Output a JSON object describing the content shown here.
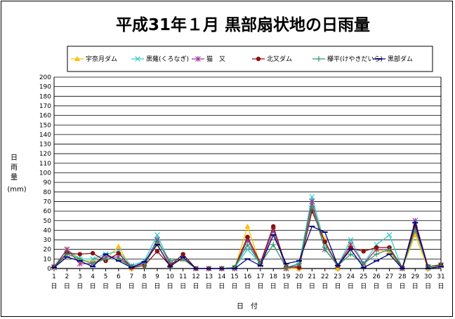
{
  "chart_data": {
    "type": "line",
    "title": "平成31年１月 黒部扇状地の日雨量",
    "ylabel_chars": [
      "日",
      "雨",
      "量"
    ],
    "yunit": "(mm)",
    "xlabel": "日　付",
    "ylim": [
      0,
      200
    ],
    "ytick_step": 10,
    "grid": true,
    "legend_position": "top",
    "x_day_suffix": "日",
    "x": [
      1,
      2,
      3,
      4,
      5,
      6,
      7,
      8,
      9,
      10,
      11,
      12,
      13,
      14,
      15,
      16,
      17,
      18,
      19,
      20,
      21,
      22,
      23,
      24,
      25,
      26,
      27,
      28,
      29,
      30,
      31
    ],
    "series": [
      {
        "name": "宇奈月ダム",
        "color": "#ffc000",
        "marker": "triangle",
        "values": [
          1,
          20,
          8,
          8,
          10,
          23,
          0,
          5,
          25,
          3,
          10,
          0,
          0,
          0,
          0,
          44,
          4,
          40,
          0,
          0,
          65,
          30,
          0,
          25,
          5,
          20,
          17,
          0,
          35,
          0,
          3
        ]
      },
      {
        "name": "黒薙(くろなぎ)",
        "color": "#33cccc",
        "marker": "x",
        "values": [
          2,
          20,
          10,
          10,
          15,
          18,
          3,
          8,
          35,
          5,
          10,
          0,
          0,
          0,
          1,
          20,
          5,
          40,
          0,
          5,
          75,
          25,
          3,
          30,
          5,
          25,
          35,
          0,
          45,
          1,
          4
        ]
      },
      {
        "name": "猫　又",
        "color": "#993399",
        "marker": "star",
        "values": [
          1,
          20,
          5,
          5,
          12,
          12,
          2,
          5,
          30,
          5,
          10,
          0,
          0,
          0,
          0,
          30,
          4,
          40,
          0,
          3,
          70,
          20,
          3,
          25,
          5,
          20,
          20,
          0,
          50,
          2,
          3
        ]
      },
      {
        "name": "北又ダム",
        "color": "#8b1010",
        "marker": "circle",
        "values": [
          2,
          16,
          15,
          16,
          8,
          16,
          1,
          3,
          18,
          3,
          15,
          0,
          0,
          0,
          1,
          33,
          6,
          44,
          2,
          1,
          60,
          28,
          3,
          21,
          18,
          22,
          22,
          1,
          44,
          2,
          4
        ]
      },
      {
        "name": "欅平(けやきだいら)",
        "color": "#339966",
        "marker": "plus",
        "values": [
          1,
          15,
          10,
          5,
          10,
          10,
          2,
          3,
          28,
          8,
          10,
          0,
          0,
          0,
          1,
          25,
          5,
          25,
          1,
          5,
          65,
          20,
          3,
          15,
          5,
          15,
          20,
          0,
          40,
          2,
          3
        ]
      },
      {
        "name": "黒部ダム",
        "color": "#000080",
        "marker": "dash",
        "values": [
          1,
          12,
          8,
          2,
          15,
          8,
          1,
          7,
          25,
          2,
          12,
          0,
          0,
          0,
          0,
          10,
          3,
          35,
          5,
          8,
          44,
          38,
          3,
          20,
          1,
          8,
          15,
          0,
          48,
          0,
          2
        ]
      }
    ]
  }
}
